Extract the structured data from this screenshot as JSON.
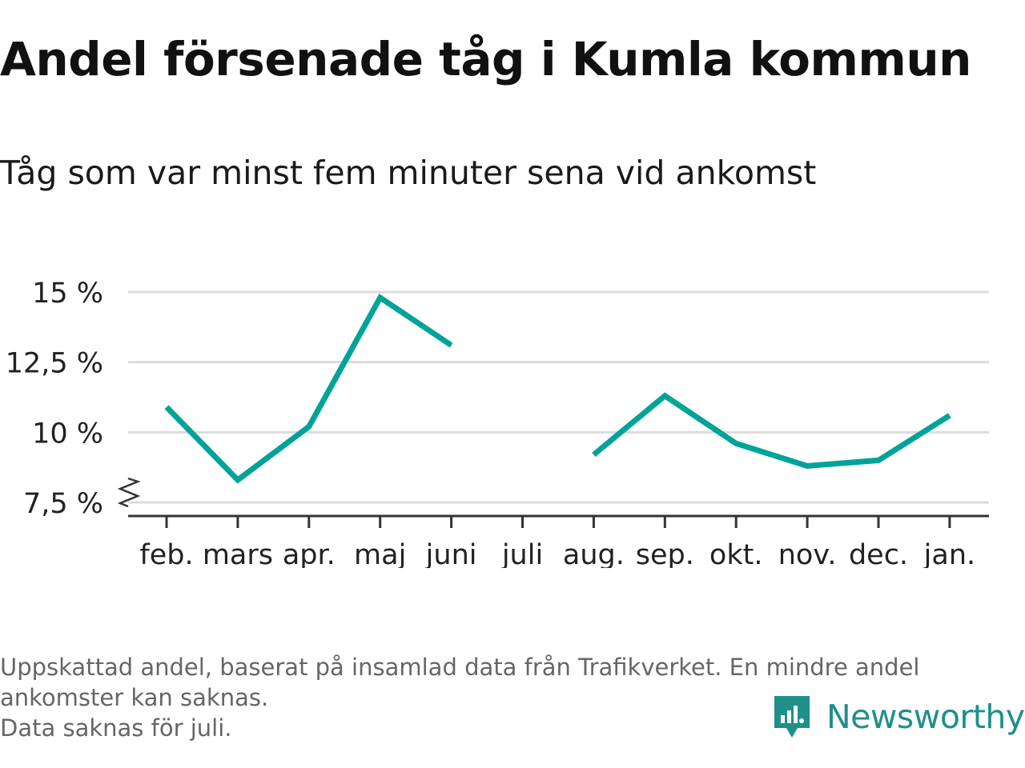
{
  "title": "Andel försenade tåg i Kumla kommun",
  "subtitle": "Tåg som var minst fem minuter sena vid ankomst",
  "footnote": {
    "line1": "Uppskattad andel, baserat på insamlad data från Trafikverket. En mindre andel",
    "line2": "ankomster kan saknas.",
    "line3": "Data saknas för juli."
  },
  "logo": {
    "text": "Newsworthy",
    "icon": "newsworthy-chart-icon",
    "color": "#1f8f8a"
  },
  "chart_data": {
    "type": "line",
    "categories": [
      "feb.",
      "mars",
      "apr.",
      "maj",
      "juni",
      "juli",
      "aug.",
      "sep.",
      "okt.",
      "nov.",
      "dec.",
      "jan."
    ],
    "series": [
      {
        "values": [
          10.9,
          8.3,
          10.2,
          14.8,
          13.1,
          null,
          9.2,
          11.3,
          9.6,
          8.8,
          9.0,
          10.6
        ],
        "color": "#00a398"
      }
    ],
    "y_ticks": [
      {
        "value": 7.5,
        "label": "7,5 %"
      },
      {
        "value": 10,
        "label": "10 %"
      },
      {
        "value": 12.5,
        "label": "12,5 %"
      },
      {
        "value": 15,
        "label": "15 %"
      }
    ],
    "ylim": [
      7.5,
      15
    ],
    "y_axis_break": true,
    "grid": true,
    "xlabel": "",
    "ylabel": ""
  }
}
